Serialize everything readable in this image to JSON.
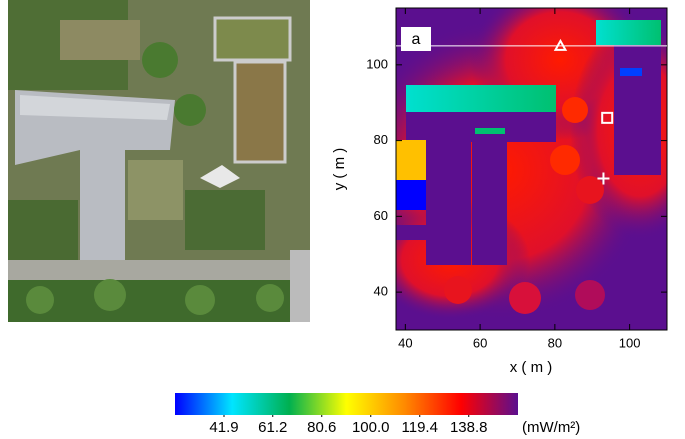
{
  "chart_data": {
    "type": "heatmap",
    "panel_label": "a",
    "xlabel": "x ( m )",
    "ylabel": "y ( m )",
    "xlim": [
      37.5,
      110
    ],
    "ylim": [
      30,
      115
    ],
    "xticks": [
      40,
      60,
      80,
      100
    ],
    "yticks": [
      40,
      60,
      80,
      100
    ],
    "reference_line_y": 105,
    "markers": [
      {
        "x": 81.5,
        "y": 105,
        "shape": "triangle"
      },
      {
        "x": 94,
        "y": 86,
        "shape": "square"
      },
      {
        "x": 93,
        "y": 70,
        "shape": "plus"
      }
    ],
    "colorbar": {
      "label": "(mW/m²)",
      "lim": [
        22.5,
        158.3
      ],
      "ticks": [
        41.9,
        61.2,
        80.6,
        {
          "value": 100,
          "label": "100.0"
        },
        119.4,
        138.8
      ],
      "colors": [
        "#0000ff",
        "#00e5ff",
        "#00b050",
        "#ffff00",
        "#ff8c00",
        "#ff0000",
        "#5b0f8f"
      ]
    }
  }
}
